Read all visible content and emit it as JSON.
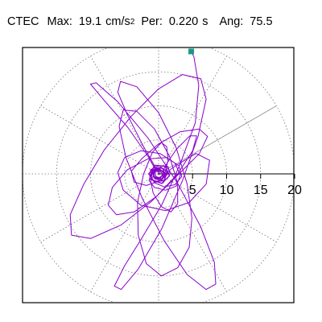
{
  "header": {
    "station": "CTEC",
    "max_label": "Max:",
    "max_value": "19.1",
    "max_unit": "cm/s",
    "max_unit_exp": "2",
    "per_label": "Per:",
    "per_value": "0.220",
    "per_unit": "s",
    "ang_label": "Ang:",
    "ang_value": "75.5"
  },
  "colors": {
    "trace": "#8800cc",
    "marker": "#1a9988",
    "grid": "#777777",
    "axis": "#000000",
    "angle_line": "#999999"
  },
  "chart_data": {
    "type": "line",
    "coordinate_system": "polar",
    "title": "",
    "xlabel": "",
    "ylabel": "",
    "radial_ticks": [
      5,
      10,
      15,
      20
    ],
    "radial_range": [
      0,
      20
    ],
    "angle_line_deg": 30,
    "grid": true,
    "series": [
      {
        "points": [
          [
            4.8,
            18.0
          ],
          [
            5.2,
            17.2
          ],
          [
            5.9,
            13.0
          ],
          [
            5.4,
            7.5
          ],
          [
            3.2,
            1.5
          ],
          [
            0.5,
            -4.5
          ],
          [
            -2.5,
            -9.5
          ],
          [
            -5.0,
            -13.5
          ],
          [
            -6.5,
            -16.5
          ],
          [
            -5.5,
            -17.0
          ],
          [
            -3.0,
            -14.0
          ],
          [
            0.5,
            -8.0
          ],
          [
            3.5,
            -1.0
          ],
          [
            5.8,
            5.5
          ],
          [
            7.0,
            11.0
          ],
          [
            6.2,
            14.0
          ],
          [
            3.5,
            14.6
          ],
          [
            0.0,
            12.5
          ],
          [
            -4.0,
            8.5
          ],
          [
            -8.0,
            3.5
          ],
          [
            -11.0,
            -1.5
          ],
          [
            -13.0,
            -6.0
          ],
          [
            -12.8,
            -9.0
          ],
          [
            -10.0,
            -9.5
          ],
          [
            -5.5,
            -7.5
          ],
          [
            -1.0,
            -4.0
          ],
          [
            3.0,
            0.0
          ],
          [
            6.0,
            3.0
          ],
          [
            7.2,
            5.5
          ],
          [
            6.0,
            6.6
          ],
          [
            3.2,
            6.2
          ],
          [
            0.0,
            4.4
          ],
          [
            -2.5,
            2.2
          ],
          [
            -4.0,
            0.4
          ],
          [
            -3.6,
            -1.2
          ],
          [
            -1.8,
            -1.7
          ],
          [
            0.3,
            -1.0
          ],
          [
            1.6,
            0.2
          ],
          [
            1.4,
            1.1
          ],
          [
            0.0,
            1.2
          ],
          [
            -1.2,
            0.6
          ],
          [
            -1.1,
            -0.3
          ],
          [
            0.0,
            -0.6
          ],
          [
            0.8,
            -0.1
          ],
          [
            0.5,
            0.5
          ],
          [
            -0.2,
            0.3
          ],
          [
            -0.6,
            1.2
          ],
          [
            -2.2,
            4.0
          ],
          [
            -4.5,
            8.5
          ],
          [
            -6.0,
            12.0
          ],
          [
            -5.6,
            13.6
          ],
          [
            -3.2,
            12.8
          ],
          [
            0.0,
            9.0
          ],
          [
            2.6,
            3.8
          ],
          [
            4.2,
            -1.5
          ],
          [
            4.9,
            -6.5
          ],
          [
            4.5,
            -10.8
          ],
          [
            2.8,
            -13.8
          ],
          [
            0.4,
            -15.0
          ],
          [
            -1.8,
            -13.2
          ],
          [
            -3.0,
            -9.0
          ],
          [
            -3.1,
            -4.2
          ],
          [
            -2.2,
            0.0
          ],
          [
            -0.9,
            3.2
          ],
          [
            0.4,
            4.6
          ],
          [
            1.2,
            4.0
          ],
          [
            1.4,
            2.0
          ],
          [
            0.9,
            0.0
          ],
          [
            2.5,
            1.2
          ],
          [
            5.5,
            3.0
          ],
          [
            7.5,
            2.0
          ],
          [
            7.0,
            -1.5
          ],
          [
            4.5,
            -4.2
          ],
          [
            1.0,
            -5.4
          ],
          [
            -2.6,
            -4.6
          ],
          [
            -5.2,
            -2.4
          ],
          [
            -6.0,
            0.2
          ],
          [
            -5.0,
            2.4
          ],
          [
            -2.6,
            3.4
          ],
          [
            0.2,
            3.0
          ],
          [
            2.4,
            1.6
          ],
          [
            3.2,
            -0.2
          ],
          [
            2.6,
            -1.8
          ],
          [
            1.0,
            -2.4
          ],
          [
            -0.6,
            -2.0
          ],
          [
            -1.4,
            -1.0
          ],
          [
            -1.2,
            0.0
          ],
          [
            -0.4,
            0.5
          ],
          [
            -1.5,
            2.5
          ],
          [
            -4.5,
            6.8
          ],
          [
            -8.0,
            10.8
          ],
          [
            -10.0,
            13.2
          ],
          [
            -9.2,
            13.4
          ],
          [
            -6.0,
            10.6
          ],
          [
            -1.5,
            5.2
          ],
          [
            2.8,
            -1.4
          ],
          [
            6.2,
            -7.8
          ],
          [
            8.2,
            -13.0
          ],
          [
            8.4,
            -16.2
          ],
          [
            7.0,
            -17.0
          ],
          [
            4.2,
            -14.8
          ],
          [
            0.8,
            -9.8
          ],
          [
            -2.4,
            -3.6
          ],
          [
            -4.8,
            2.4
          ],
          [
            -5.8,
            7.0
          ],
          [
            -5.2,
            9.4
          ],
          [
            -3.2,
            9.2
          ],
          [
            -0.6,
            6.6
          ],
          [
            1.6,
            2.6
          ],
          [
            2.8,
            -1.4
          ],
          [
            2.8,
            -4.4
          ],
          [
            1.8,
            -5.6
          ],
          [
            0.4,
            -4.8
          ],
          [
            -0.8,
            -2.8
          ],
          [
            -1.2,
            -0.8
          ],
          [
            -0.8,
            0.6
          ],
          [
            0.0,
            0.9
          ],
          [
            0.6,
            0.3
          ],
          [
            1.0,
            1.2
          ],
          [
            2.6,
            3.6
          ],
          [
            4.6,
            5.6
          ],
          [
            5.6,
            5.6
          ],
          [
            5.0,
            3.4
          ],
          [
            2.8,
            0.0
          ],
          [
            -0.4,
            -3.4
          ],
          [
            -3.6,
            -5.6
          ],
          [
            -6.2,
            -6.0
          ],
          [
            -7.4,
            -4.6
          ],
          [
            -6.8,
            -2.0
          ],
          [
            -4.6,
            0.6
          ],
          [
            -1.6,
            2.2
          ],
          [
            1.2,
            2.4
          ],
          [
            3.0,
            1.2
          ],
          [
            3.4,
            -0.4
          ],
          [
            2.4,
            -1.6
          ],
          [
            0.8,
            -1.9
          ],
          [
            -0.6,
            -1.3
          ],
          [
            -1.2,
            -0.3
          ],
          [
            -0.8,
            0.5
          ],
          [
            0.0,
            0.6
          ],
          [
            0.6,
            0.0
          ],
          [
            0.3,
            -0.6
          ],
          [
            -0.4,
            -0.4
          ],
          [
            -0.5,
            0.3
          ],
          [
            0.2,
            0.7
          ],
          [
            0.8,
            0.2
          ],
          [
            0.5,
            -0.7
          ],
          [
            -0.4,
            -0.8
          ],
          [
            -0.9,
            0.0
          ],
          [
            -0.3,
            0.9
          ],
          [
            0.6,
            0.8
          ],
          [
            1.0,
            -0.2
          ],
          [
            0.3,
            -1.0
          ],
          [
            -0.7,
            -0.6
          ],
          [
            -0.6,
            0.4
          ],
          [
            0.1,
            0.5
          ],
          [
            0.0,
            0.0
          ]
        ]
      }
    ]
  }
}
